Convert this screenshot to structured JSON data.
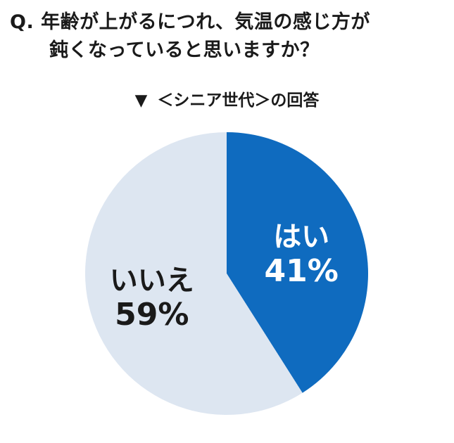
{
  "question": {
    "prefix": "Q.",
    "line1": "年齢が上がるにつれ、気温の感じ方が",
    "line2": "鈍くなっていると思いますか？"
  },
  "subtitle": {
    "marker": "▼",
    "text": "＜シニア世代＞の回答"
  },
  "chart_data": {
    "type": "pie",
    "title": "年齢が上がるにつれ、気温の感じ方が鈍くなっていると思いますか？",
    "subtitle": "＜シニア世代＞の回答",
    "slices": [
      {
        "label": "はい",
        "value": 41,
        "value_label": "41%",
        "color": "#0f6bbf",
        "text_color": "#ffffff"
      },
      {
        "label": "いいえ",
        "value": 59,
        "value_label": "59%",
        "color": "#dde6f1",
        "text_color": "#1a1a1a"
      }
    ],
    "start_angle_deg": 0,
    "direction": "clockwise",
    "legend": "none"
  }
}
